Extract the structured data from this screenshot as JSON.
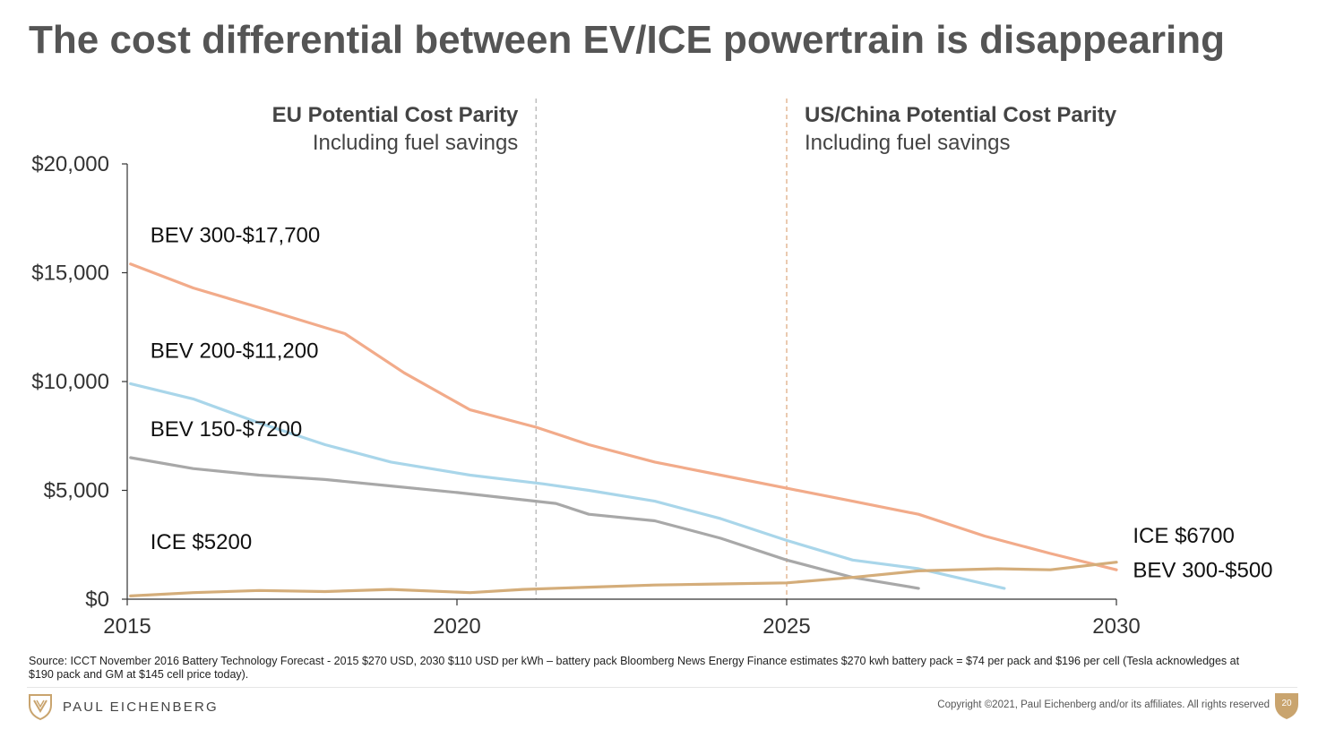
{
  "title": "The cost differential between EV/ICE powertrain is disappearing",
  "chart_data": {
    "type": "line",
    "x_range": [
      2015,
      2030
    ],
    "y_range": [
      0,
      20000
    ],
    "x_ticks": [
      2015,
      2020,
      2025,
      2030
    ],
    "x_tick_labels": [
      "2015",
      "2020",
      "2025",
      "2030"
    ],
    "y_ticks": [
      0,
      5000,
      10000,
      15000,
      20000
    ],
    "y_tick_labels": [
      "$0",
      "$5,000",
      "$10,000",
      "$15,000",
      "$20,000"
    ],
    "grid": false,
    "series": [
      {
        "key": "bev300",
        "color": "#f2ab8a",
        "points": [
          [
            2015.05,
            15400
          ],
          [
            2016,
            14300
          ],
          [
            2017,
            13400
          ],
          [
            2018.3,
            12200
          ],
          [
            2019.2,
            10400
          ],
          [
            2020.2,
            8700
          ],
          [
            2021.2,
            7900
          ],
          [
            2022,
            7100
          ],
          [
            2023,
            6300
          ],
          [
            2024,
            5700
          ],
          [
            2025,
            5100
          ],
          [
            2026,
            4500
          ],
          [
            2027,
            3900
          ],
          [
            2028,
            2900
          ],
          [
            2029,
            2100
          ],
          [
            2030,
            1350
          ]
        ]
      },
      {
        "key": "bev200",
        "color": "#a9d6ea",
        "points": [
          [
            2015.05,
            9900
          ],
          [
            2016,
            9200
          ],
          [
            2017,
            8100
          ],
          [
            2018,
            7100
          ],
          [
            2019,
            6300
          ],
          [
            2020.2,
            5700
          ],
          [
            2021.3,
            5300
          ],
          [
            2022,
            5000
          ],
          [
            2023,
            4500
          ],
          [
            2024,
            3700
          ],
          [
            2025,
            2700
          ],
          [
            2026,
            1800
          ],
          [
            2027,
            1400
          ],
          [
            2028.3,
            500
          ]
        ]
      },
      {
        "key": "bev150",
        "color": "#a8a8a8",
        "points": [
          [
            2015.05,
            6500
          ],
          [
            2016,
            6000
          ],
          [
            2017,
            5700
          ],
          [
            2018,
            5500
          ],
          [
            2019,
            5200
          ],
          [
            2020,
            4900
          ],
          [
            2021.5,
            4400
          ],
          [
            2022,
            3900
          ],
          [
            2023,
            3600
          ],
          [
            2024,
            2800
          ],
          [
            2025,
            1800
          ],
          [
            2026,
            1000
          ],
          [
            2027,
            500
          ]
        ]
      },
      {
        "key": "ice",
        "color": "#d4ad7a",
        "points": [
          [
            2015.05,
            150
          ],
          [
            2016,
            300
          ],
          [
            2017,
            400
          ],
          [
            2018,
            350
          ],
          [
            2019,
            450
          ],
          [
            2020.2,
            300
          ],
          [
            2021,
            450
          ],
          [
            2022,
            550
          ],
          [
            2023,
            650
          ],
          [
            2024,
            700
          ],
          [
            2025,
            750
          ],
          [
            2026,
            1000
          ],
          [
            2027,
            1300
          ],
          [
            2028.2,
            1400
          ],
          [
            2029,
            1350
          ],
          [
            2030,
            1700
          ]
        ]
      }
    ],
    "series_labels": [
      {
        "text": "BEV 300-$17,700",
        "x": 2015.35,
        "y": 16400
      },
      {
        "text": "BEV 200-$11,200",
        "x": 2015.35,
        "y": 11100
      },
      {
        "text": "BEV 150-$7200",
        "x": 2015.35,
        "y": 7500
      },
      {
        "text": "ICE $5200",
        "x": 2015.35,
        "y": 2300
      },
      {
        "text": "ICE $6700",
        "x": 2030.25,
        "y": 2600
      },
      {
        "text": "BEV 300-$500",
        "x": 2030.25,
        "y": 1000
      }
    ],
    "reference_lines": [
      {
        "x": 2021.2,
        "color": "#bdbdbd",
        "heading": "EU Potential Cost Parity",
        "subheading": "Including fuel savings",
        "align": "right"
      },
      {
        "x": 2025.0,
        "color": "#e3b996",
        "heading": "US/China Potential Cost Parity",
        "subheading": "Including fuel savings",
        "align": "left"
      }
    ]
  },
  "source": "Source:  ICCT November 2016 Battery Technology Forecast - 2015 $270 USD, 2030 $110 USD per kWh – battery pack Bloomberg News Energy Finance estimates $270 kwh battery pack = $74 per pack and $196 per cell (Tesla acknowledges at $190 pack and GM at $145 cell price today).",
  "footer": {
    "logo_text": "PAUL EICHENBERG",
    "logo_icon": "shield-chevron-icon",
    "copyright": "Copyright ©2021, Paul Eichenberg and/or its affiliates. All rights reserved",
    "page_number": "20",
    "accent_color": "#c9a46e"
  }
}
